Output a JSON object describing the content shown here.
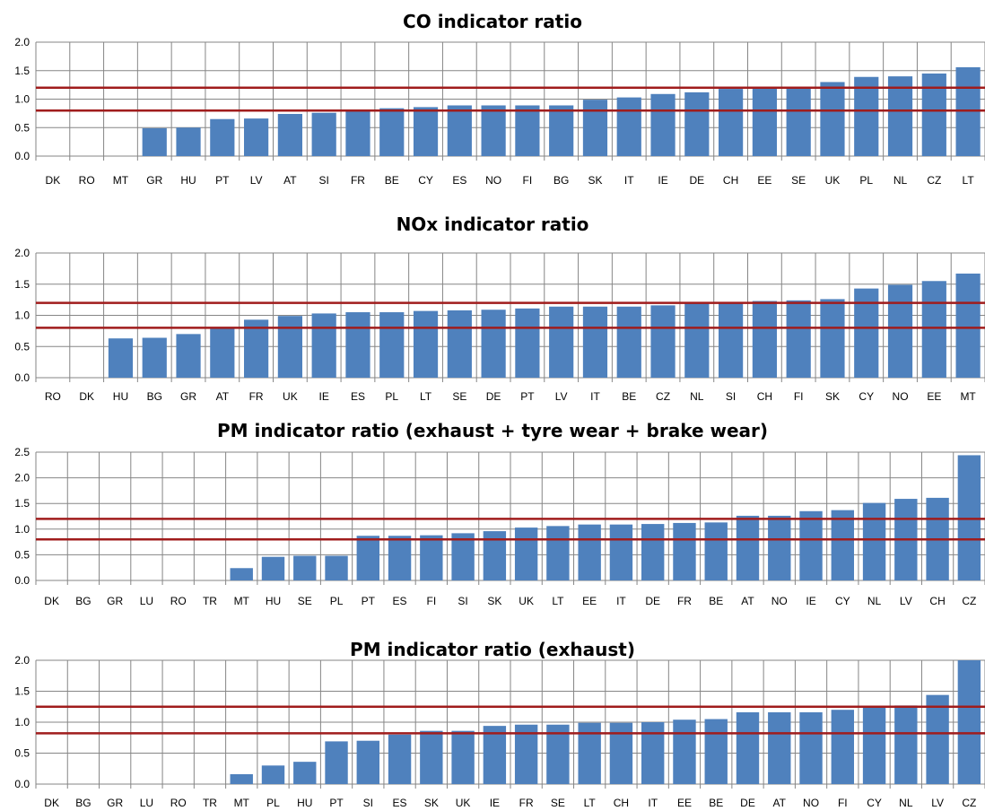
{
  "colors": {
    "bar": "#4f81bd",
    "reference_line": "#a01c1c",
    "grid": "#868686"
  },
  "chart_data": [
    {
      "type": "bar",
      "title": "CO indicator ratio",
      "ylim": [
        0,
        2
      ],
      "yticks": [
        "0.0",
        "0.5",
        "1.0",
        "1.5",
        "2.0"
      ],
      "reference_lines": [
        1.2,
        0.8
      ],
      "categories": [
        "DK",
        "RO",
        "MT",
        "GR",
        "HU",
        "PT",
        "LV",
        "AT",
        "SI",
        "FR",
        "BE",
        "CY",
        "ES",
        "NO",
        "FI",
        "BG",
        "SK",
        "IT",
        "IE",
        "DE",
        "CH",
        "EE",
        "SE",
        "UK",
        "PL",
        "NL",
        "CZ",
        "LT"
      ],
      "values": [
        0,
        0,
        0,
        0.49,
        0.5,
        0.65,
        0.66,
        0.74,
        0.76,
        0.8,
        0.84,
        0.86,
        0.89,
        0.89,
        0.89,
        0.89,
        0.99,
        1.03,
        1.09,
        1.12,
        1.18,
        1.2,
        1.22,
        1.3,
        1.39,
        1.4,
        1.45,
        1.56
      ]
    },
    {
      "type": "bar",
      "title": "NOx indicator ratio",
      "ylim": [
        0,
        2
      ],
      "yticks": [
        "0.0",
        "0.5",
        "1.0",
        "1.5",
        "2.0"
      ],
      "reference_lines": [
        1.2,
        0.8
      ],
      "categories": [
        "RO",
        "DK",
        "HU",
        "BG",
        "GR",
        "AT",
        "FR",
        "UK",
        "IE",
        "ES",
        "PL",
        "LT",
        "SE",
        "DE",
        "PT",
        "LV",
        "IT",
        "BE",
        "CZ",
        "NL",
        "SI",
        "CH",
        "FI",
        "SK",
        "CY",
        "NO",
        "EE",
        "MT"
      ],
      "values": [
        0,
        0,
        0.63,
        0.64,
        0.7,
        0.8,
        0.93,
        0.99,
        1.03,
        1.05,
        1.05,
        1.07,
        1.08,
        1.09,
        1.11,
        1.14,
        1.14,
        1.14,
        1.16,
        1.2,
        1.2,
        1.23,
        1.24,
        1.26,
        1.43,
        1.49,
        1.55,
        1.67
      ]
    },
    {
      "type": "bar",
      "title": "PM indicator ratio (exhaust + tyre wear + brake wear)",
      "ylim": [
        0,
        2.5
      ],
      "yticks": [
        "0.0",
        "0.5",
        "1.0",
        "1.5",
        "2.0",
        "2.5"
      ],
      "reference_lines": [
        1.2,
        0.8
      ],
      "categories": [
        "DK",
        "BG",
        "GR",
        "LU",
        "RO",
        "TR",
        "MT",
        "HU",
        "SE",
        "PL",
        "PT",
        "ES",
        "FI",
        "SI",
        "SK",
        "UK",
        "LT",
        "EE",
        "IT",
        "DE",
        "FR",
        "BE",
        "AT",
        "NO",
        "IE",
        "CY",
        "NL",
        "LV",
        "CH",
        "CZ"
      ],
      "values": [
        0,
        0,
        0,
        0,
        0,
        0,
        0.24,
        0.46,
        0.48,
        0.48,
        0.87,
        0.87,
        0.88,
        0.92,
        0.96,
        1.03,
        1.06,
        1.09,
        1.09,
        1.1,
        1.12,
        1.13,
        1.26,
        1.26,
        1.35,
        1.37,
        1.51,
        1.59,
        1.61,
        2.44
      ]
    },
    {
      "type": "bar",
      "title": "PM indicator ratio (exhaust)",
      "ylim": [
        0,
        2
      ],
      "yticks": [
        "0.0",
        "0.5",
        "1.0",
        "1.5",
        "2.0"
      ],
      "reference_lines": [
        1.25,
        0.82
      ],
      "categories": [
        "DK",
        "BG",
        "GR",
        "LU",
        "RO",
        "TR",
        "MT",
        "PL",
        "HU",
        "PT",
        "SI",
        "ES",
        "SK",
        "UK",
        "IE",
        "FR",
        "SE",
        "LT",
        "CH",
        "IT",
        "EE",
        "BE",
        "DE",
        "AT",
        "NO",
        "FI",
        "CY",
        "NL",
        "LV",
        "CZ"
      ],
      "values": [
        0,
        0,
        0,
        0,
        0,
        0,
        0.16,
        0.3,
        0.36,
        0.69,
        0.7,
        0.8,
        0.86,
        0.86,
        0.94,
        0.96,
        0.96,
        0.99,
        0.99,
        1.0,
        1.04,
        1.05,
        1.16,
        1.16,
        1.16,
        1.2,
        1.25,
        1.27,
        1.44,
        2.0
      ]
    }
  ]
}
